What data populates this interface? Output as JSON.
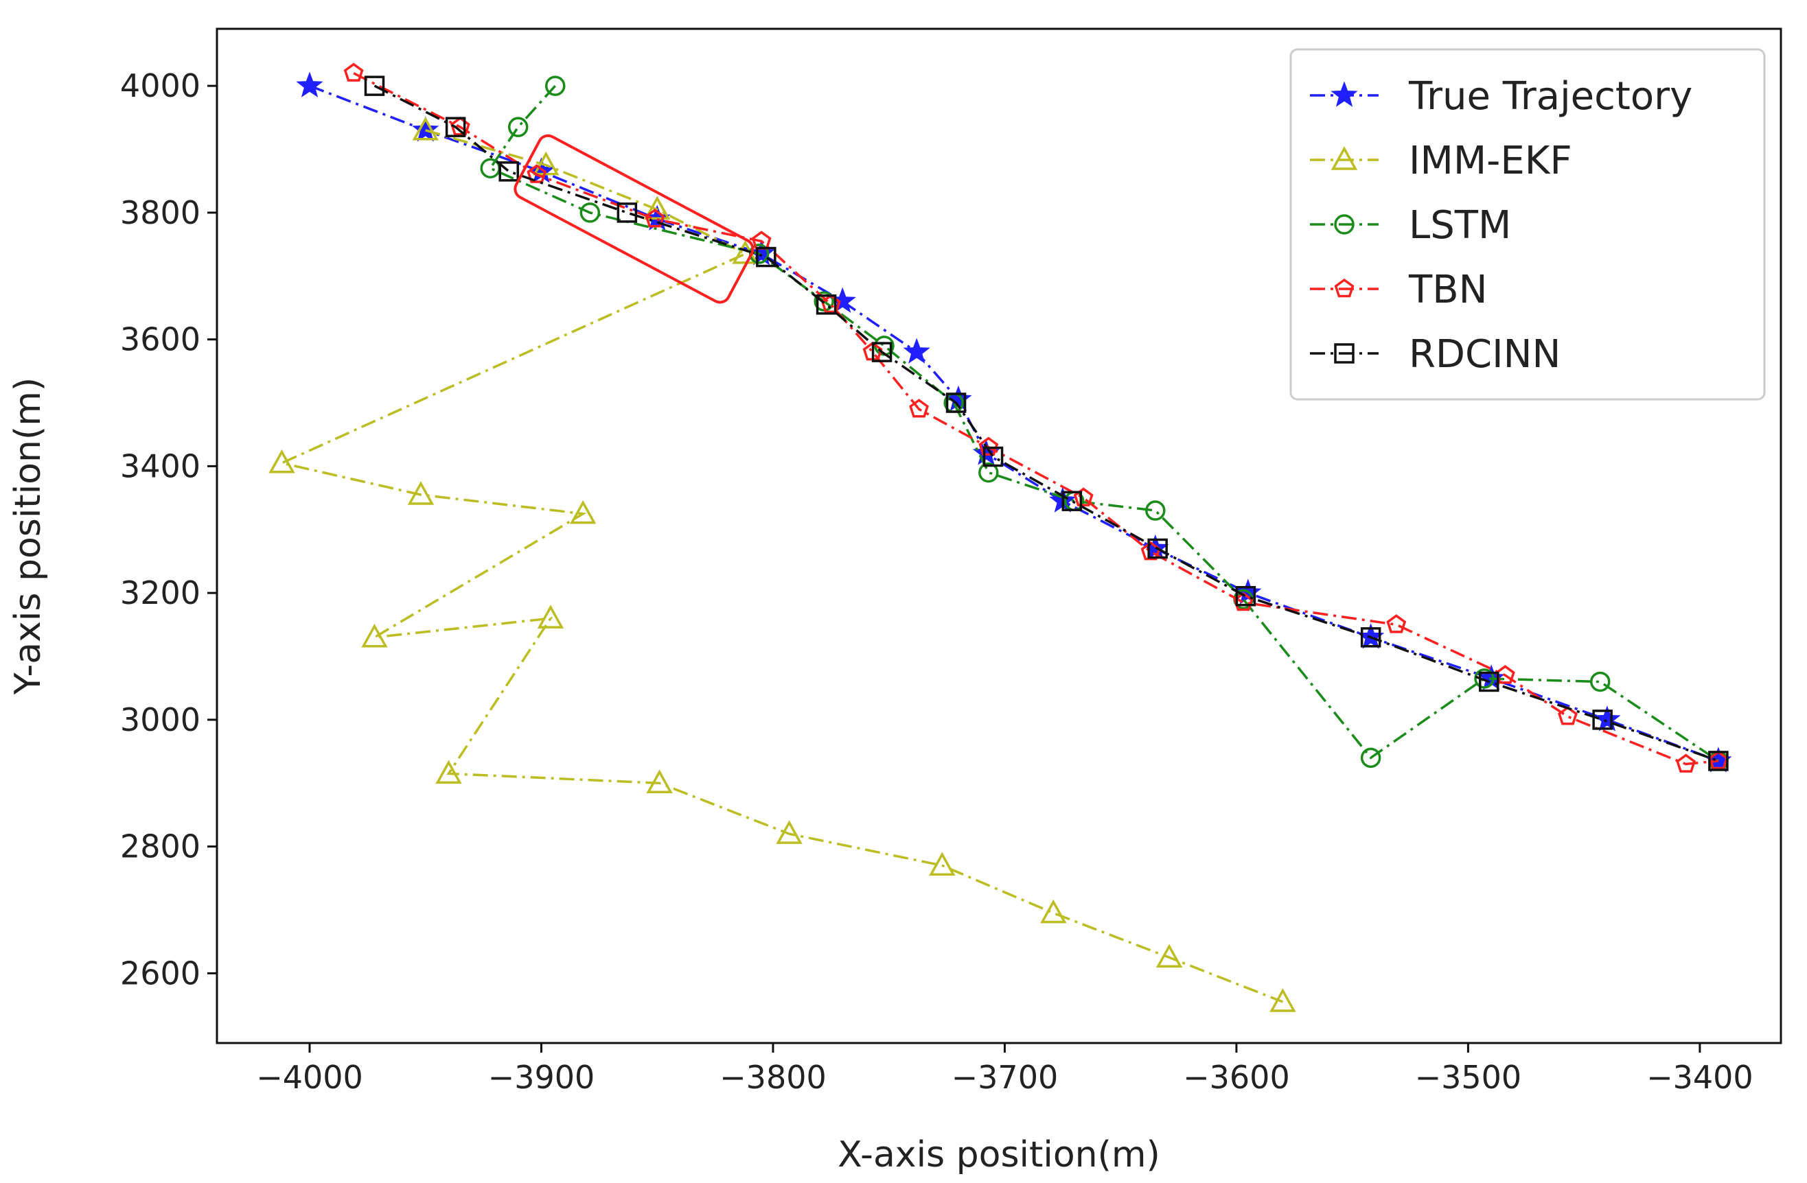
{
  "chart_data": {
    "type": "line",
    "title": "",
    "xlabel": "X-axis position(m)",
    "ylabel": "Y-axis position(m)",
    "xlim": [
      -4040,
      -3365
    ],
    "ylim": [
      2490,
      4090
    ],
    "xticks": [
      -4000,
      -3900,
      -3800,
      -3700,
      -3600,
      -3500,
      -3400
    ],
    "yticks": [
      2600,
      2800,
      3000,
      3200,
      3400,
      3600,
      3800,
      4000
    ],
    "xtick_labels": [
      "−4000",
      "−3900",
      "−3800",
      "−3700",
      "−3600",
      "−3500",
      "−3400"
    ],
    "ytick_labels": [
      "2600",
      "2800",
      "3000",
      "3200",
      "3400",
      "3600",
      "3800",
      "4000"
    ],
    "grid": false,
    "legend_position": "top-right",
    "highlight_box": {
      "color": "#ff2020"
    },
    "series": [
      {
        "name": "True Trajectory",
        "color": "#1f1fff",
        "marker": "star",
        "line_style": "dashdot",
        "points": [
          [
            -4000,
            4000
          ],
          [
            -3950,
            3930
          ],
          [
            -3900,
            3865
          ],
          [
            -3850,
            3790
          ],
          [
            -3805,
            3735
          ],
          [
            -3770,
            3660
          ],
          [
            -3738,
            3580
          ],
          [
            -3720,
            3505
          ],
          [
            -3708,
            3420
          ],
          [
            -3675,
            3345
          ],
          [
            -3635,
            3270
          ],
          [
            -3595,
            3200
          ],
          [
            -3542,
            3130
          ],
          [
            -3490,
            3065
          ],
          [
            -3440,
            3000
          ],
          [
            -3392,
            2935
          ]
        ]
      },
      {
        "name": "IMM-EKF",
        "color": "#bcbd22",
        "marker": "triangle",
        "line_style": "dashdot",
        "points": [
          [
            -3950,
            3930
          ],
          [
            -3898,
            3875
          ],
          [
            -3850,
            3805
          ],
          [
            -3812,
            3735
          ],
          [
            -4012,
            3405
          ],
          [
            -3952,
            3355
          ],
          [
            -3882,
            3325
          ],
          [
            -3972,
            3130
          ],
          [
            -3896,
            3160
          ],
          [
            -3940,
            2915
          ],
          [
            -3849,
            2900
          ],
          [
            -3793,
            2820
          ],
          [
            -3727,
            2770
          ],
          [
            -3679,
            2695
          ],
          [
            -3629,
            2625
          ],
          [
            -3580,
            2555
          ]
        ]
      },
      {
        "name": "LSTM",
        "color": "#1a8c1a",
        "marker": "circle",
        "line_style": "dashdot",
        "points": [
          [
            -3894,
            4000
          ],
          [
            -3910,
            3935
          ],
          [
            -3922,
            3870
          ],
          [
            -3879,
            3800
          ],
          [
            -3806,
            3735
          ],
          [
            -3778,
            3660
          ],
          [
            -3752,
            3590
          ],
          [
            -3722,
            3500
          ],
          [
            -3707,
            3390
          ],
          [
            -3670,
            3345
          ],
          [
            -3635,
            3330
          ],
          [
            -3597,
            3190
          ],
          [
            -3542,
            2940
          ],
          [
            -3493,
            3065
          ],
          [
            -3443,
            3060
          ],
          [
            -3392,
            2935
          ]
        ]
      },
      {
        "name": "TBN",
        "color": "#ff2020",
        "marker": "pentagon",
        "line_style": "dashdot",
        "points": [
          [
            -3981,
            4020
          ],
          [
            -3935,
            3935
          ],
          [
            -3902,
            3860
          ],
          [
            -3851,
            3790
          ],
          [
            -3805,
            3755
          ],
          [
            -3775,
            3655
          ],
          [
            -3757,
            3580
          ],
          [
            -3737,
            3490
          ],
          [
            -3707,
            3430
          ],
          [
            -3666,
            3350
          ],
          [
            -3637,
            3265
          ],
          [
            -3597,
            3185
          ],
          [
            -3531,
            3150
          ],
          [
            -3484,
            3070
          ],
          [
            -3457,
            3005
          ],
          [
            -3406,
            2930
          ],
          [
            -3392,
            2935
          ]
        ]
      },
      {
        "name": "RDCINN",
        "color": "#111111",
        "marker": "square",
        "line_style": "dashdot",
        "points": [
          [
            -3972,
            4000
          ],
          [
            -3937,
            3935
          ],
          [
            -3914,
            3865
          ],
          [
            -3863,
            3800
          ],
          [
            -3803,
            3730
          ],
          [
            -3777,
            3655
          ],
          [
            -3753,
            3580
          ],
          [
            -3721,
            3500
          ],
          [
            -3705,
            3415
          ],
          [
            -3671,
            3345
          ],
          [
            -3634,
            3270
          ],
          [
            -3596,
            3195
          ],
          [
            -3542,
            3130
          ],
          [
            -3491,
            3060
          ],
          [
            -3442,
            3000
          ],
          [
            -3392,
            2935
          ]
        ]
      }
    ]
  }
}
